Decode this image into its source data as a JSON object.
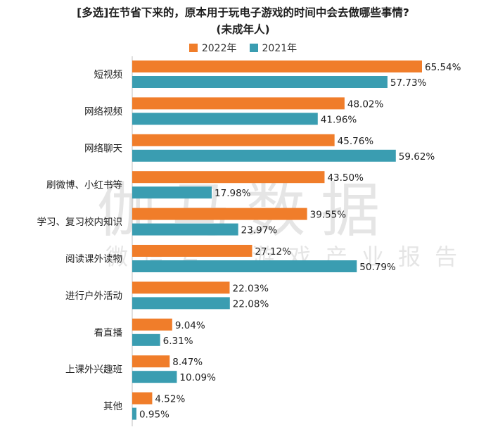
{
  "title_line1": "[多选]在节省下来的，原本用于玩电子游戏的时间中会去做哪些事情?",
  "title_line2": "(未成年人)",
  "watermark_main": "伽马数据",
  "watermark_sub": "微信号：游戏产业报告",
  "colors": {
    "series_2022": "#f07d2a",
    "series_2021": "#3a9db1"
  },
  "chart_data": {
    "type": "bar",
    "orientation": "horizontal",
    "categories": [
      "短视频",
      "网络视频",
      "网络聊天",
      "刷微博、小红书等",
      "学习、复习校内知识",
      "阅读课外读物",
      "进行户外活动",
      "看直播",
      "上课外兴趣班",
      "其他"
    ],
    "series": [
      {
        "name": "2022年",
        "values": [
          65.54,
          48.02,
          45.76,
          43.5,
          39.55,
          27.12,
          22.03,
          9.04,
          8.47,
          4.52
        ],
        "labels": [
          "65.54%",
          "48.02%",
          "45.76%",
          "43.50%",
          "39.55%",
          "27.12%",
          "22.03%",
          "9.04%",
          "8.47%",
          "4.52%"
        ]
      },
      {
        "name": "2021年",
        "values": [
          57.73,
          41.96,
          59.62,
          17.98,
          23.97,
          50.79,
          22.08,
          6.31,
          10.09,
          0.95
        ],
        "labels": [
          "57.73%",
          "41.96%",
          "59.62%",
          "17.98%",
          "23.97%",
          "50.79%",
          "22.08%",
          "6.31%",
          "10.09%",
          "0.95%"
        ]
      }
    ],
    "xlim": [
      0,
      68
    ],
    "legend_position": "top-center",
    "grid": false
  }
}
